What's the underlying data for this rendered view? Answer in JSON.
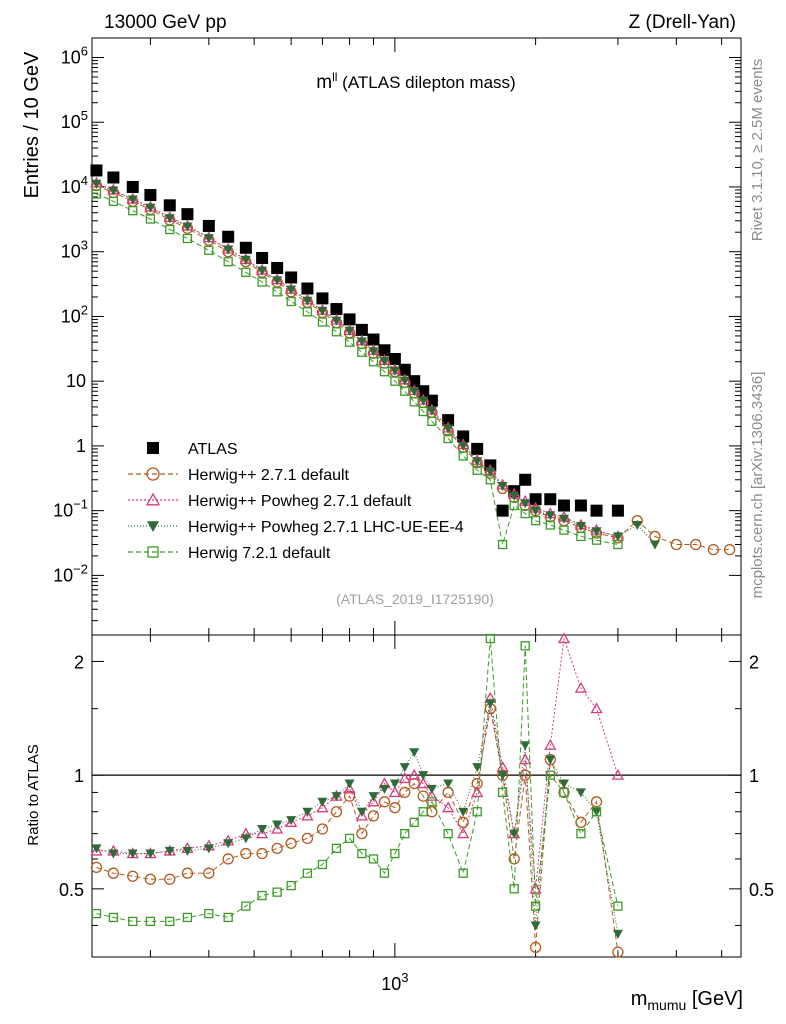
{
  "header": {
    "left": "13000 GeV pp",
    "right": "Z (Drell-Yan)"
  },
  "side_text": {
    "rivet": "Rivet 3.1.10, ≥ 2.5M events",
    "mcplots": "mcplots.cern.ch [arXiv:1306.3436]"
  },
  "plot_title": {
    "main": "m",
    "sup": "ll",
    "rest": " (ATLAS dilepton mass)"
  },
  "analysis_id": "(ATLAS_2019_I1725190)",
  "axes": {
    "ylabel_main": "Entries / 10 GeV",
    "ylabel_ratio": "Ratio to ATLAS",
    "xlabel_main": "m",
    "xlabel_sub": "mumu",
    "xlabel_unit": " [GeV]"
  },
  "colors": {
    "atlas": "#000000",
    "herwigpp": "#b35a1f",
    "powheg": "#d63c7b",
    "powheg_ue": "#2e6b38",
    "herwig7": "#3a9c26"
  },
  "chart_data": [
    {
      "type": "scatter",
      "title": "",
      "xlabel": "m_mumu [GeV]",
      "ylabel": "Entries / 10 GeV",
      "x_scale": "log",
      "y_scale": "log",
      "xlim": [
        225,
        5500
      ],
      "ylim": [
        0.0012,
        2000000
      ],
      "y_ticks": [
        "10^-2",
        "10^-1",
        "1",
        "10",
        "10^2",
        "10^3",
        "10^4",
        "10^5",
        "10^6"
      ],
      "x_ticks": [
        "10^3"
      ],
      "legend_position": "bottom-left",
      "series": [
        {
          "name": "ATLAS",
          "marker": "filled-square",
          "x": [
            230,
            250,
            275,
            300,
            330,
            360,
            400,
            440,
            480,
            520,
            560,
            600,
            650,
            700,
            750,
            800,
            850,
            900,
            950,
            1000,
            1050,
            1100,
            1150,
            1200,
            1300,
            1400,
            1500,
            1600,
            1700,
            1800,
            1900,
            2000,
            2150,
            2300,
            2500,
            2700,
            3000
          ],
          "y": [
            18000,
            14000,
            10000,
            7500,
            5200,
            3800,
            2500,
            1700,
            1150,
            800,
            560,
            400,
            270,
            190,
            130,
            90,
            62,
            44,
            30,
            22,
            15,
            10,
            7,
            5,
            2.5,
            1.4,
            0.9,
            0.5,
            0.1,
            0.2,
            0.3,
            0.15,
            0.15,
            0.12,
            0.12,
            0.1,
            0.1
          ]
        },
        {
          "name": "Herwig++ 2.7.1 default",
          "marker": "open-circle",
          "x": [
            230,
            250,
            275,
            300,
            330,
            360,
            400,
            440,
            480,
            520,
            560,
            600,
            650,
            700,
            750,
            800,
            850,
            900,
            950,
            1000,
            1050,
            1100,
            1150,
            1200,
            1300,
            1400,
            1500,
            1600,
            1700,
            1800,
            1900,
            2000,
            2150,
            2300,
            2500,
            2700,
            3000,
            3300,
            3600,
            4000,
            4400,
            4800,
            5200
          ],
          "y": [
            10500,
            8200,
            6000,
            4500,
            3100,
            2300,
            1500,
            1000,
            700,
            480,
            340,
            240,
            165,
            115,
            80,
            56,
            38,
            27,
            19,
            14,
            9.6,
            6.6,
            4.7,
            3.3,
            1.7,
            0.95,
            0.55,
            0.38,
            0.22,
            0.16,
            0.12,
            0.1,
            0.08,
            0.07,
            0.055,
            0.045,
            0.038,
            0.07,
            0.04,
            0.03,
            0.03,
            0.025,
            0.025
          ]
        },
        {
          "name": "Herwig++ Powheg 2.7.1 default",
          "marker": "open-triangle-up",
          "x": [
            230,
            250,
            275,
            300,
            330,
            360,
            400,
            440,
            480,
            520,
            560,
            600,
            650,
            700,
            750,
            800,
            850,
            900,
            950,
            1000,
            1050,
            1100,
            1150,
            1200,
            1300,
            1400,
            1500,
            1600,
            1700,
            1800,
            1900,
            2000,
            2150,
            2300,
            2500,
            2700,
            3000
          ],
          "y": [
            11500,
            9000,
            6500,
            4900,
            3400,
            2500,
            1650,
            1100,
            760,
            520,
            370,
            265,
            180,
            125,
            88,
            61,
            42,
            30,
            21,
            15,
            10.5,
            7.2,
            5.1,
            3.6,
            1.9,
            1.05,
            0.6,
            0.42,
            0.25,
            0.18,
            0.14,
            0.11,
            0.09,
            0.08,
            0.06,
            0.05,
            0.04
          ]
        },
        {
          "name": "Herwig++ Powheg 2.7.1 LHC-UE-EE-4",
          "marker": "filled-triangle-down",
          "x": [
            230,
            250,
            275,
            300,
            330,
            360,
            400,
            440,
            480,
            520,
            560,
            600,
            650,
            700,
            750,
            800,
            850,
            900,
            950,
            1000,
            1050,
            1100,
            1150,
            1200,
            1300,
            1400,
            1500,
            1600,
            1700,
            1800,
            1900,
            2000,
            2150,
            2300,
            2500,
            2700,
            3000,
            3300,
            3600
          ],
          "y": [
            11200,
            8800,
            6400,
            4800,
            3300,
            2450,
            1620,
            1080,
            750,
            510,
            360,
            260,
            175,
            122,
            86,
            60,
            41,
            29,
            20.5,
            14.5,
            10.2,
            7,
            5,
            3.5,
            1.85,
            1.0,
            0.58,
            0.4,
            0.24,
            0.17,
            0.13,
            0.1,
            0.085,
            0.075,
            0.058,
            0.048,
            0.04,
            0.06,
            0.03
          ]
        },
        {
          "name": "Herwig 7.2.1 default",
          "marker": "open-square",
          "x": [
            230,
            250,
            275,
            300,
            330,
            360,
            400,
            440,
            480,
            520,
            560,
            600,
            650,
            700,
            750,
            800,
            850,
            900,
            950,
            1000,
            1050,
            1100,
            1150,
            1200,
            1300,
            1400,
            1500,
            1600,
            1700,
            1800,
            1900,
            2000,
            2150,
            2300,
            2500,
            2700,
            3000
          ],
          "y": [
            7800,
            6000,
            4300,
            3200,
            2200,
            1600,
            1050,
            700,
            480,
            340,
            240,
            170,
            118,
            82,
            58,
            40,
            28,
            20,
            14,
            10,
            7,
            4.8,
            3.4,
            2.4,
            1.3,
            0.7,
            0.42,
            0.3,
            0.03,
            0.12,
            0.09,
            0.07,
            0.06,
            0.05,
            0.04,
            0.035,
            0.03
          ]
        }
      ]
    },
    {
      "type": "scatter",
      "title": "",
      "xlabel": "m_mumu [GeV]",
      "ylabel": "Ratio to ATLAS",
      "x_scale": "log",
      "y_scale": "log",
      "xlim": [
        225,
        5500
      ],
      "ylim": [
        0.33,
        2.35
      ],
      "y_ticks": [
        "0.5",
        "1",
        "2"
      ],
      "reference_line": 1,
      "series": [
        {
          "name": "Herwig++ 2.7.1 default",
          "x": [
            230,
            250,
            275,
            300,
            330,
            360,
            400,
            440,
            480,
            520,
            560,
            600,
            650,
            700,
            750,
            800,
            850,
            900,
            950,
            1000,
            1050,
            1100,
            1150,
            1200,
            1300,
            1400,
            1500,
            1600,
            1700,
            1800,
            1900,
            2000,
            2150,
            2300,
            2500,
            2700,
            3000
          ],
          "y": [
            0.57,
            0.55,
            0.54,
            0.53,
            0.53,
            0.55,
            0.55,
            0.6,
            0.62,
            0.62,
            0.64,
            0.66,
            0.68,
            0.72,
            0.8,
            0.88,
            0.7,
            0.78,
            0.85,
            0.82,
            0.9,
            0.95,
            0.88,
            0.8,
            0.9,
            0.75,
            0.95,
            1.5,
            1.0,
            0.6,
            1.0,
            0.35,
            1.1,
            0.9,
            0.75,
            0.85,
            0.34
          ]
        },
        {
          "name": "Herwig++ Powheg 2.7.1 default",
          "x": [
            230,
            250,
            275,
            300,
            330,
            360,
            400,
            440,
            480,
            520,
            560,
            600,
            650,
            700,
            750,
            800,
            850,
            900,
            950,
            1000,
            1050,
            1100,
            1150,
            1200,
            1300,
            1400,
            1500,
            1600,
            1700,
            1800,
            1900,
            2000,
            2150,
            2300,
            2500,
            2700,
            3000
          ],
          "y": [
            0.63,
            0.63,
            0.62,
            0.62,
            0.63,
            0.64,
            0.65,
            0.67,
            0.7,
            0.7,
            0.72,
            0.75,
            0.78,
            0.82,
            0.88,
            0.92,
            0.78,
            0.85,
            0.95,
            0.9,
            0.98,
            1.0,
            0.95,
            0.88,
            0.82,
            0.7,
            0.9,
            1.6,
            1.05,
            0.7,
            1.1,
            0.5,
            1.2,
            2.3,
            1.7,
            1.5,
            1.0
          ]
        },
        {
          "name": "Herwig++ Powheg 2.7.1 LHC-UE-EE-4",
          "x": [
            230,
            250,
            275,
            300,
            330,
            360,
            400,
            440,
            480,
            520,
            560,
            600,
            650,
            700,
            750,
            800,
            850,
            900,
            950,
            1000,
            1050,
            1100,
            1150,
            1200,
            1300,
            1400,
            1500,
            1600,
            1700,
            1800,
            1900,
            2000,
            2150,
            2300,
            2500,
            2700,
            3000
          ],
          "y": [
            0.64,
            0.62,
            0.62,
            0.62,
            0.63,
            0.63,
            0.64,
            0.66,
            0.68,
            0.72,
            0.74,
            0.76,
            0.8,
            0.85,
            0.88,
            0.95,
            0.8,
            0.88,
            0.92,
            0.95,
            1.05,
            1.15,
            1.0,
            0.92,
            0.95,
            0.8,
            1.05,
            1.55,
            1.0,
            0.7,
            1.2,
            0.4,
            1.1,
            0.95,
            0.9,
            0.8,
            0.38
          ]
        },
        {
          "name": "Herwig 7.2.1 default",
          "x": [
            230,
            250,
            275,
            300,
            330,
            360,
            400,
            440,
            480,
            520,
            560,
            600,
            650,
            700,
            750,
            800,
            850,
            900,
            950,
            1000,
            1050,
            1100,
            1150,
            1200,
            1300,
            1400,
            1500,
            1600,
            1700,
            1800,
            1900,
            2000,
            2150,
            2300,
            2500,
            2700,
            3000
          ],
          "y": [
            0.43,
            0.42,
            0.41,
            0.41,
            0.41,
            0.42,
            0.43,
            0.42,
            0.45,
            0.48,
            0.49,
            0.51,
            0.55,
            0.58,
            0.64,
            0.68,
            0.62,
            0.6,
            0.55,
            0.62,
            0.7,
            0.75,
            0.8,
            0.85,
            0.7,
            0.55,
            0.8,
            2.3,
            0.9,
            0.5,
            2.2,
            0.45,
            1.0,
            0.9,
            0.7,
            0.8,
            0.45
          ]
        }
      ]
    }
  ]
}
